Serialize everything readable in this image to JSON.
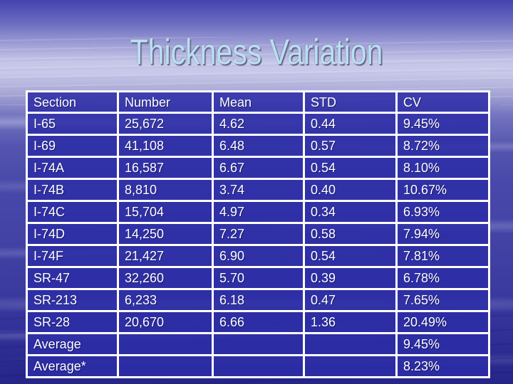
{
  "title": "Thickness Variation",
  "table": {
    "columns": [
      "Section",
      "Number",
      "Mean",
      "STD",
      "CV"
    ],
    "rows": [
      [
        "I-65",
        "25,672",
        "4.62",
        "0.44",
        "9.45%"
      ],
      [
        "I-69",
        "41,108",
        "6.48",
        "0.57",
        "8.72%"
      ],
      [
        "I-74A",
        "16,587",
        "6.67",
        "0.54",
        "8.10%"
      ],
      [
        "I-74B",
        "8,810",
        "3.74",
        "0.40",
        "10.67%"
      ],
      [
        "I-74C",
        "15,704",
        "4.97",
        "0.34",
        "6.93%"
      ],
      [
        "I-74D",
        "14,250",
        "7.27",
        "0.58",
        "7.94%"
      ],
      [
        "I-74F",
        "21,427",
        "6.90",
        "0.54",
        "7.81%"
      ],
      [
        "SR-47",
        "32,260",
        "5.70",
        "0.39",
        "6.78%"
      ],
      [
        "SR-213",
        "6,233",
        "6.18",
        "0.47",
        "7.65%"
      ],
      [
        "SR-28",
        "20,670",
        "6.66",
        "1.36",
        "20.49%"
      ],
      [
        "Average",
        "",
        "",
        "",
        "9.45%"
      ],
      [
        "Average*",
        "",
        "",
        "",
        "8.23%"
      ]
    ]
  },
  "chart_data": {
    "type": "table",
    "title": "Thickness Variation",
    "columns": [
      "Section",
      "Number",
      "Mean",
      "STD",
      "CV"
    ],
    "rows": [
      [
        "I-65",
        "25,672",
        "4.62",
        "0.44",
        "9.45%"
      ],
      [
        "I-69",
        "41,108",
        "6.48",
        "0.57",
        "8.72%"
      ],
      [
        "I-74A",
        "16,587",
        "6.67",
        "0.54",
        "8.10%"
      ],
      [
        "I-74B",
        "8,810",
        "3.74",
        "0.40",
        "10.67%"
      ],
      [
        "I-74C",
        "15,704",
        "4.97",
        "0.34",
        "6.93%"
      ],
      [
        "I-74D",
        "14,250",
        "7.27",
        "0.58",
        "7.94%"
      ],
      [
        "I-74F",
        "21,427",
        "6.90",
        "0.54",
        "7.81%"
      ],
      [
        "SR-47",
        "32,260",
        "5.70",
        "0.39",
        "6.78%"
      ],
      [
        "SR-213",
        "6,233",
        "6.18",
        "0.47",
        "7.65%"
      ],
      [
        "SR-28",
        "20,670",
        "6.66",
        "1.36",
        "20.49%"
      ],
      [
        "Average",
        "",
        "",
        "",
        "9.45%"
      ],
      [
        "Average*",
        "",
        "",
        "",
        "8.23%"
      ]
    ]
  },
  "colors": {
    "title_text": "#b9dff2",
    "cell_fill": "#2c2ca6",
    "border": "#ffffff",
    "background_top": "#4343b0",
    "background_band": "#c9c9ea",
    "background_bottom": "#25258a",
    "cell_text": "#ffffff"
  }
}
